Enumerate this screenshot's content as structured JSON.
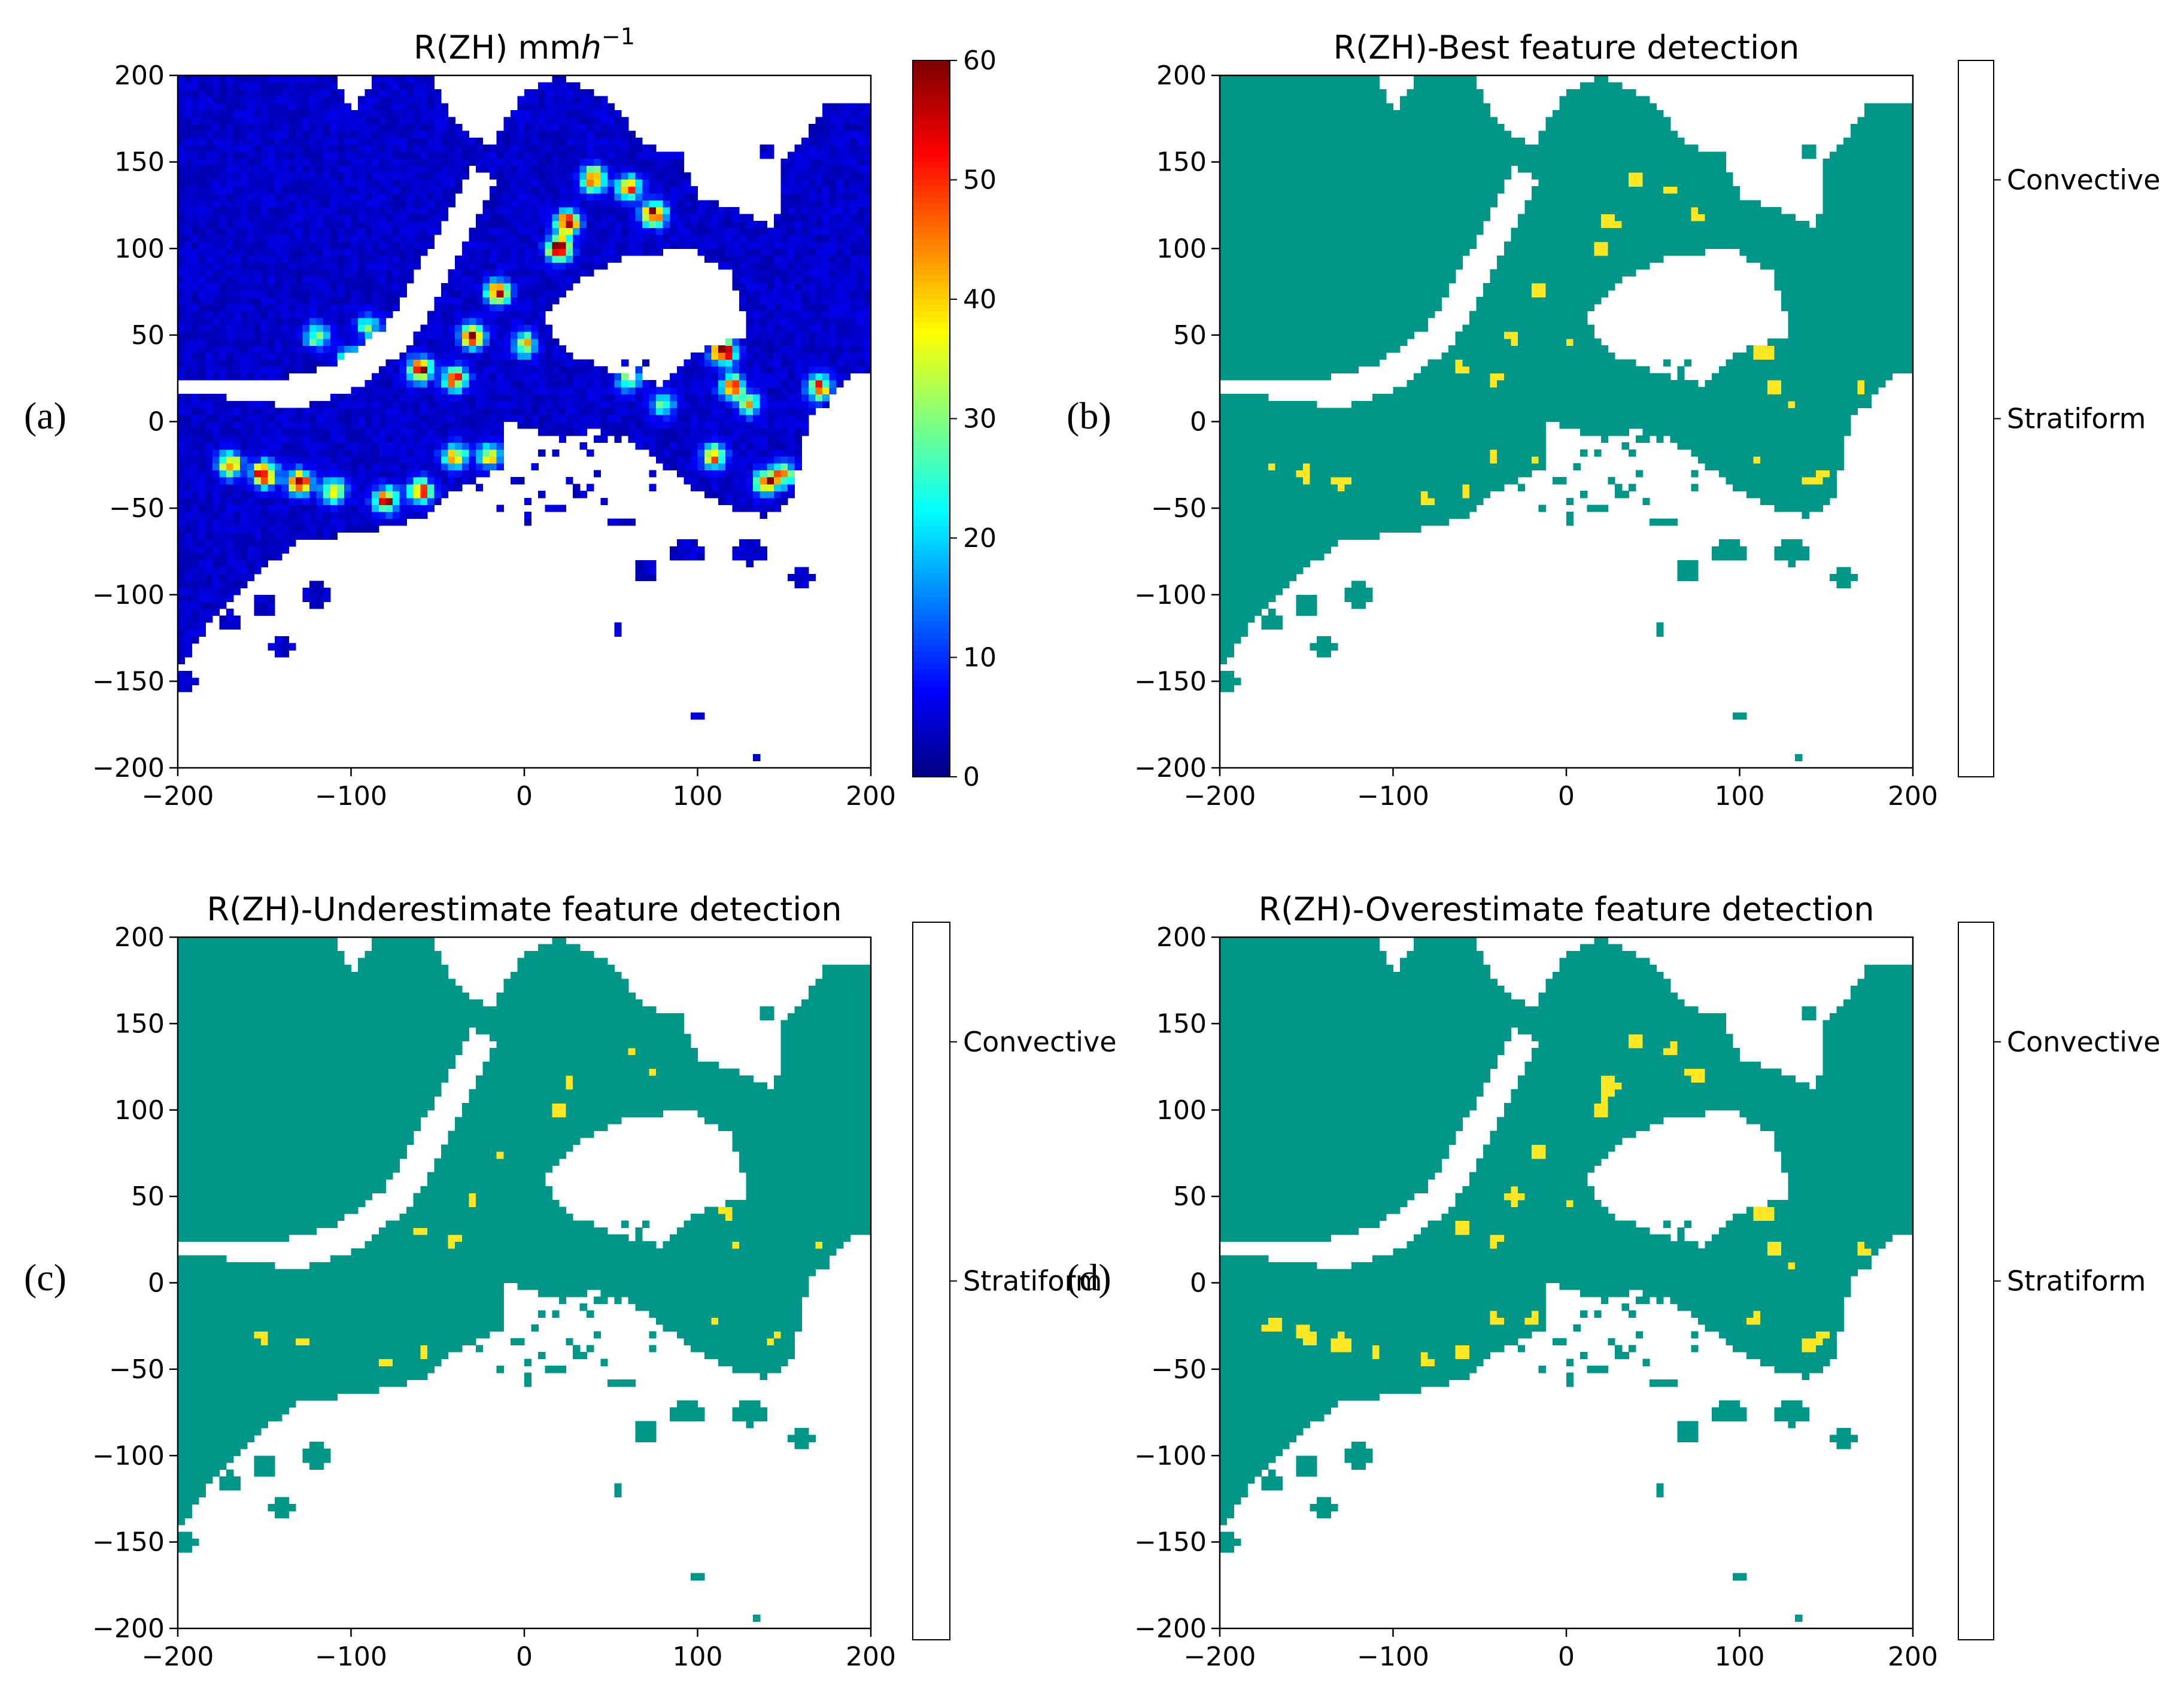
{
  "colors": {
    "precip_low": "#00008b",
    "stratiform": "#009688",
    "convective": "#fde725",
    "none": "#440154"
  },
  "chart_data": [
    {
      "id": "a",
      "panel_label": "(a)",
      "type": "heatmap",
      "title": "R(ZH) mm",
      "title_unit_italic": "h",
      "title_exp": "−1",
      "xlim": [
        -200,
        200
      ],
      "ylim": [
        -200,
        200
      ],
      "xticks": [
        "−200",
        "−100",
        "0",
        "100",
        "200"
      ],
      "yticks": [
        "200",
        "150",
        "100",
        "50",
        "0",
        "−50",
        "−100",
        "−150",
        "−200"
      ],
      "colorbar": {
        "kind": "continuous",
        "colormap": "jet",
        "range": [
          0,
          60
        ],
        "ticks": [
          "60",
          "50",
          "40",
          "30",
          "20",
          "10",
          "0"
        ]
      }
    },
    {
      "id": "b",
      "panel_label": "(b)",
      "type": "heatmap",
      "title": "R(ZH)-Best feature detection",
      "xlim": [
        -200,
        200
      ],
      "ylim": [
        -200,
        200
      ],
      "xticks": [
        "−200",
        "−100",
        "0",
        "100",
        "200"
      ],
      "yticks": [
        "200",
        "150",
        "100",
        "50",
        "0",
        "−50",
        "−100",
        "−150",
        "−200"
      ],
      "colorbar": {
        "kind": "categorical",
        "categories": [
          "Convective",
          "Stratiform"
        ]
      },
      "convective_density": 0.17
    },
    {
      "id": "c",
      "panel_label": "(c)",
      "type": "heatmap",
      "title": "R(ZH)-Underestimate feature detection",
      "xlim": [
        -200,
        200
      ],
      "ylim": [
        -200,
        200
      ],
      "xticks": [
        "−200",
        "−100",
        "0",
        "100",
        "200"
      ],
      "yticks": [
        "200",
        "150",
        "100",
        "50",
        "0",
        "−50",
        "−100",
        "−150",
        "−200"
      ],
      "colorbar": {
        "kind": "categorical",
        "categories": [
          "Convective",
          "Stratiform"
        ]
      },
      "convective_density": 0.12
    },
    {
      "id": "d",
      "panel_label": "(d)",
      "type": "heatmap",
      "title": "R(ZH)-Overestimate feature detection",
      "xlim": [
        -200,
        200
      ],
      "ylim": [
        -200,
        200
      ],
      "xticks": [
        "−200",
        "−100",
        "0",
        "100",
        "200"
      ],
      "yticks": [
        "200",
        "150",
        "100",
        "50",
        "0",
        "−50",
        "−100",
        "−150",
        "−200"
      ],
      "colorbar": {
        "kind": "categorical",
        "categories": [
          "Convective",
          "Stratiform"
        ]
      },
      "convective_density": 0.21
    }
  ]
}
